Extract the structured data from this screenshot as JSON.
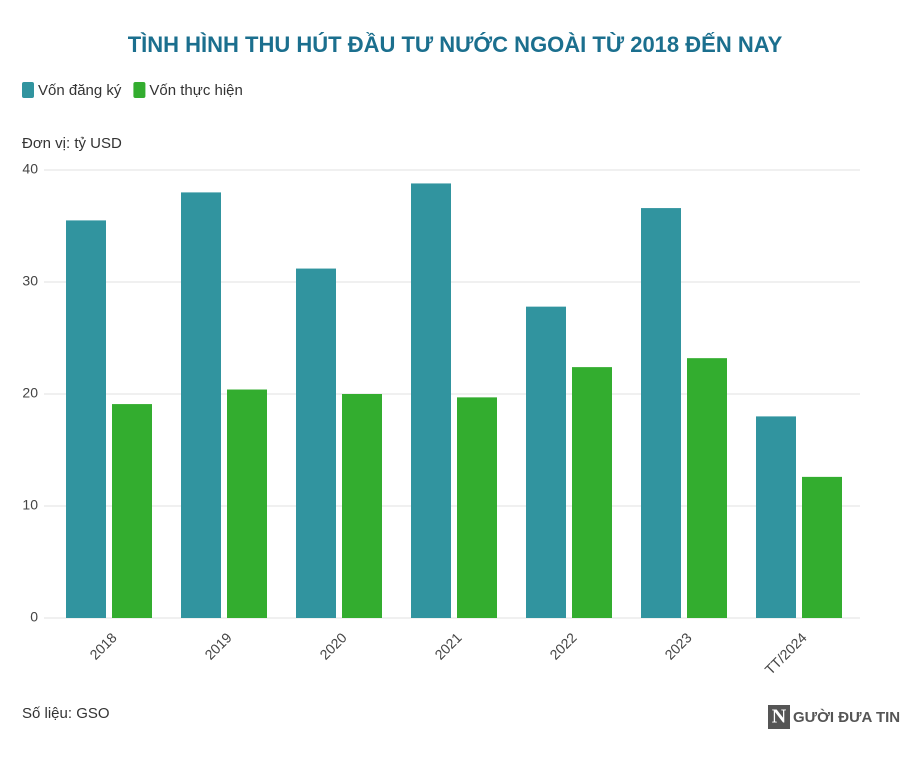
{
  "chart_data": {
    "type": "bar",
    "title": "TÌNH HÌNH THU HÚT ĐẦU TƯ NƯỚC NGOÀI TỪ 2018 ĐẾN NAY",
    "unit_label": "Đơn vị: tỷ USD",
    "source": "Số liệu: GSO",
    "logo_initial": "N",
    "logo_text": "GƯỜI ĐƯA TIN",
    "categories": [
      "2018",
      "2019",
      "2020",
      "2021",
      "2022",
      "2023",
      "TT/2024"
    ],
    "series": [
      {
        "name": "Vốn đăng ký",
        "color": "#31949f",
        "values": [
          35.5,
          38.0,
          31.2,
          38.8,
          27.8,
          36.6,
          18.0
        ]
      },
      {
        "name": "Vốn thực hiện",
        "color": "#33ad2f",
        "values": [
          19.1,
          20.4,
          20.0,
          19.7,
          22.4,
          23.2,
          12.6
        ]
      }
    ],
    "ylim": [
      0,
      40
    ],
    "yticks": [
      0,
      10,
      20,
      30,
      40
    ],
    "grid": true,
    "legend": "top-left"
  }
}
